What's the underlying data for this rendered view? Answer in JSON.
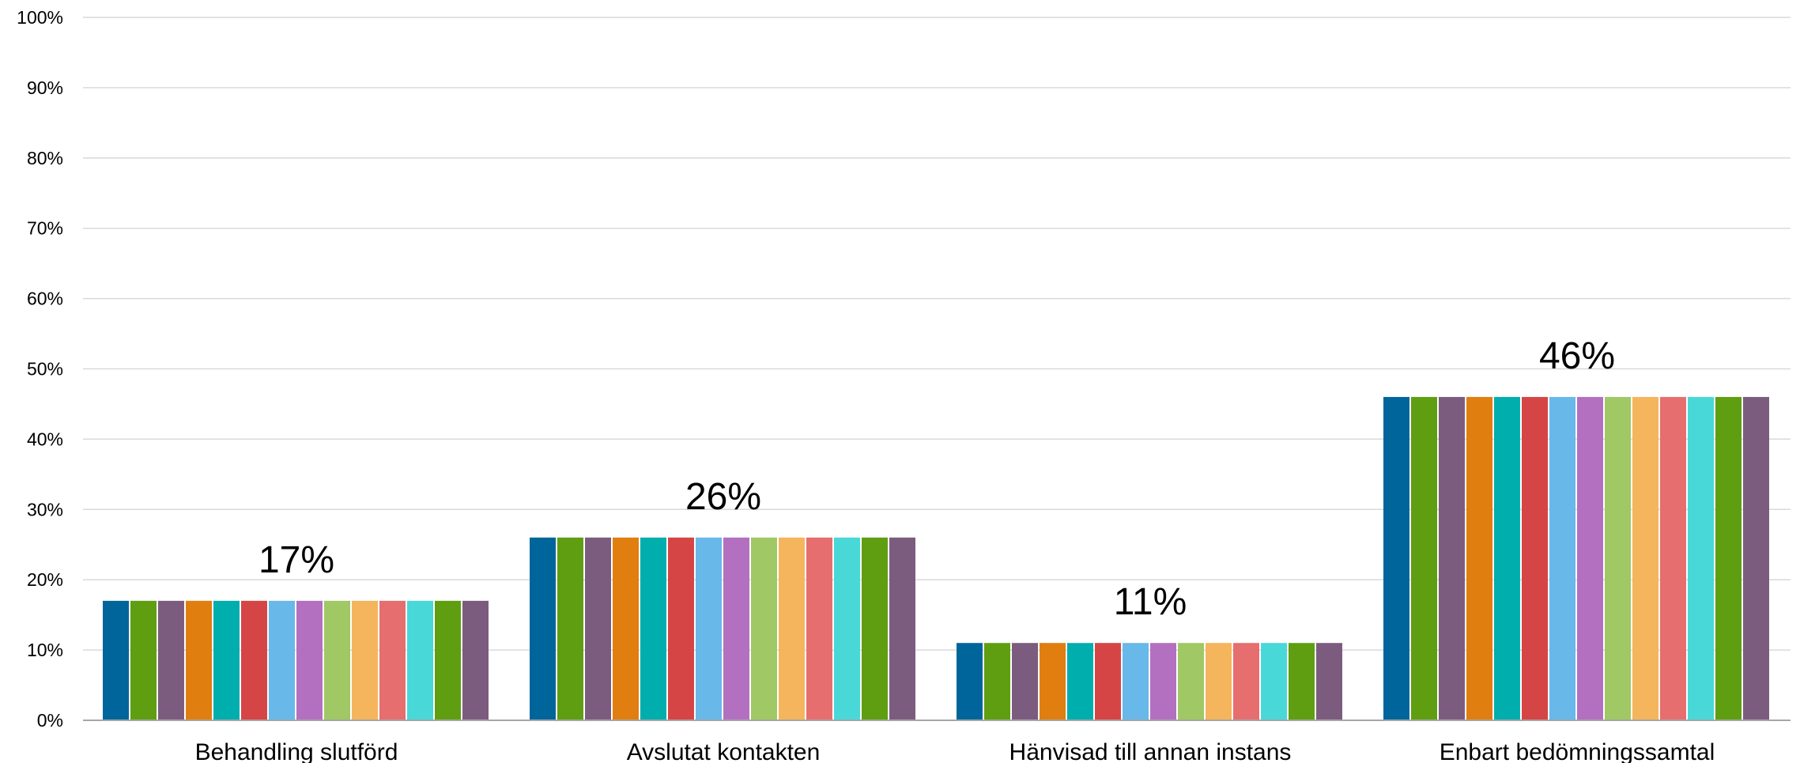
{
  "chart_data": {
    "type": "bar",
    "title": "",
    "xlabel": "",
    "ylabel": "",
    "ylim": [
      0,
      100
    ],
    "y_ticks": [
      "0%",
      "10%",
      "20%",
      "30%",
      "40%",
      "50%",
      "60%",
      "70%",
      "80%",
      "90%",
      "100%"
    ],
    "categories": [
      "Behandling slutförd",
      "Avslutat kontakten",
      "Hänvisad till annan instans",
      "Enbart bedömningssamtal"
    ],
    "values": [
      17,
      26,
      11,
      46
    ],
    "data_labels": [
      "17%",
      "26%",
      "11%",
      "46%"
    ],
    "bars_per_category": 14,
    "bar_colors": [
      "#00659a",
      "#5f9e11",
      "#7b5c7e",
      "#e07e10",
      "#00aeae",
      "#d64545",
      "#68b8e9",
      "#b370c0",
      "#a0c864",
      "#f5b55c",
      "#e66e6e",
      "#48d8d8",
      "#5f9e11",
      "#7b5c7e"
    ],
    "grid": true,
    "legend": "none"
  }
}
